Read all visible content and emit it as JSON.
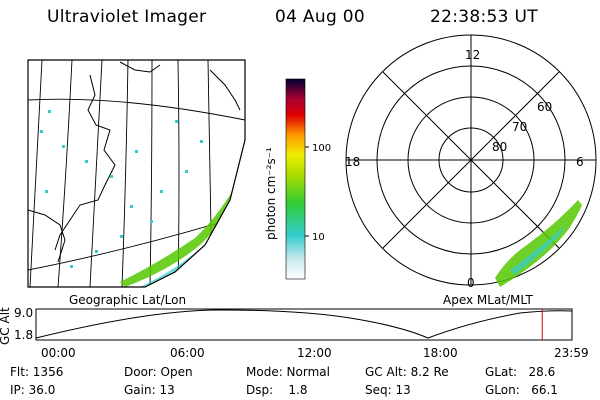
{
  "header": {
    "instrument": "Ultraviolet Imager",
    "date": "04 Aug 00",
    "time": "22:38:53 UT"
  },
  "colorbar": {
    "unit_label": "photon cm⁻²s⁻¹",
    "ticks": [
      "100",
      "10"
    ]
  },
  "geo_panel": {
    "label": "Geographic Lat/Lon"
  },
  "polar_panel": {
    "label": "Apex MLat/MLT",
    "mlt_labels": [
      "12",
      "18",
      "6",
      "0"
    ],
    "lat_labels": [
      "60",
      "70",
      "80"
    ]
  },
  "orbit_plot": {
    "ylabel": "GC Alt",
    "y_ticks": [
      "9.0",
      "1.8"
    ],
    "x_ticks": [
      "00:00",
      "06:00",
      "12:00",
      "18:00",
      "23:59"
    ],
    "marker_hour": 22.65
  },
  "status": {
    "flt": "Flt: 1356",
    "ip": "IP: 36.0",
    "door": "Door: Open",
    "gain": "Gain: 13",
    "mode": "Mode: Normal",
    "dsp": "Dsp:    1.8",
    "gc_alt": "GC Alt: 8.2 Re",
    "seq": "Seq: 13",
    "glat": "GLat:   28.6",
    "glon": "GLon:   66.1"
  },
  "colors": {
    "aurora_green": "#55c800",
    "aurora_cyan": "#33cccc",
    "marker_red": "#cc0000"
  }
}
